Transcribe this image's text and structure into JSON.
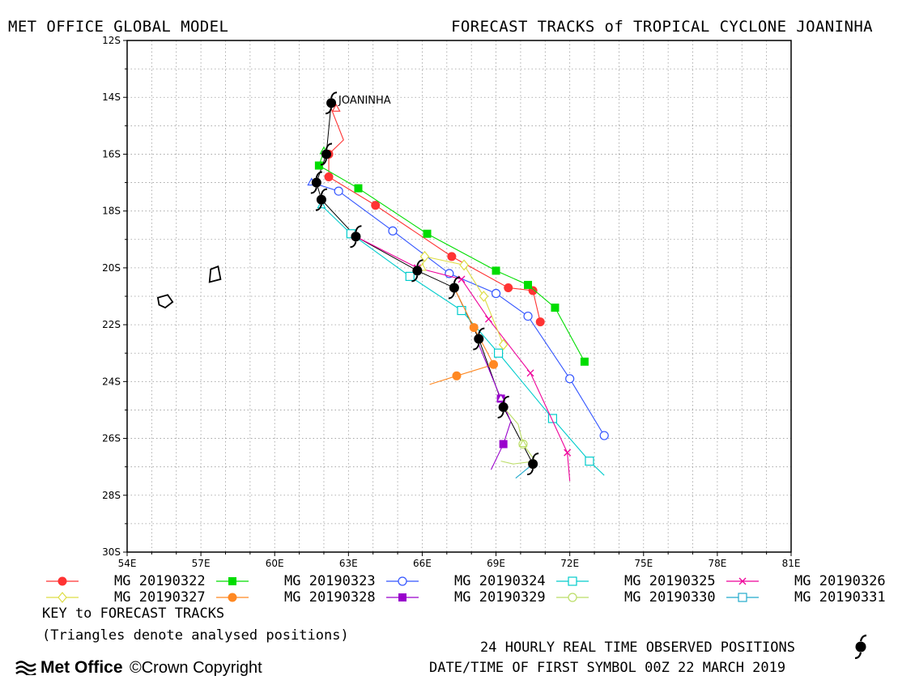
{
  "header": {
    "left": "MET OFFICE GLOBAL MODEL",
    "right": "FORECAST TRACKS of TROPICAL CYCLONE JOANINHA"
  },
  "chart_data": {
    "type": "map-tracks",
    "storm_label": "JOANINHA",
    "x_ticks": [
      "54E",
      "57E",
      "60E",
      "63E",
      "66E",
      "69E",
      "72E",
      "75E",
      "78E",
      "81E"
    ],
    "y_ticks": [
      "12S",
      "14S",
      "16S",
      "18S",
      "20S",
      "22S",
      "24S",
      "26S",
      "28S",
      "30S"
    ],
    "xlim": [
      54,
      81
    ],
    "ylim": [
      -30,
      -12
    ],
    "grid": true,
    "islands": [
      [
        [
          55.25,
          -21.05
        ],
        [
          55.65,
          -20.95
        ],
        [
          55.85,
          -21.2
        ],
        [
          55.55,
          -21.4
        ],
        [
          55.3,
          -21.3
        ]
      ],
      [
        [
          57.4,
          -20.05
        ],
        [
          57.7,
          -19.95
        ],
        [
          57.8,
          -20.4
        ],
        [
          57.35,
          -20.5
        ]
      ]
    ],
    "observed": {
      "lon": [
        62.3,
        62.1,
        61.7,
        61.9,
        63.3,
        65.8,
        67.3,
        68.3,
        69.3,
        70.5
      ],
      "lat": [
        -14.2,
        -16.0,
        -17.0,
        -17.6,
        -18.9,
        -20.1,
        -20.7,
        -22.5,
        -24.9,
        -26.9
      ]
    },
    "series": [
      {
        "name": "MG 20190322",
        "color": "#ff3333",
        "marker": "circle-filled",
        "analysed": {
          "lon": [
            62.5
          ],
          "lat": [
            -14.4
          ]
        },
        "track": {
          "lon": [
            62.3,
            62.8,
            62.2,
            62.2,
            64.1,
            67.2,
            69.5,
            70.5,
            70.8
          ],
          "lat": [
            -14.4,
            -15.5,
            -16.0,
            -16.8,
            -17.8,
            -19.6,
            -20.7,
            -20.8,
            -21.9
          ]
        },
        "markers": {
          "lon": [
            62.2,
            62.2,
            64.1,
            67.2,
            69.5,
            70.5,
            70.8
          ],
          "lat": [
            -16.0,
            -16.8,
            -17.8,
            -19.6,
            -20.7,
            -20.8,
            -21.9
          ]
        }
      },
      {
        "name": "MG 20190323",
        "color": "#00dd00",
        "marker": "square-filled",
        "analysed": {
          "lon": [
            62.0
          ],
          "lat": [
            -15.9
          ]
        },
        "track": {
          "lon": [
            62.0,
            61.8,
            63.4,
            66.2,
            69.0,
            70.3,
            71.4,
            72.6
          ],
          "lat": [
            -15.9,
            -16.4,
            -17.2,
            -18.8,
            -20.1,
            -20.6,
            -21.4,
            -23.3
          ]
        },
        "markers": {
          "lon": [
            61.8,
            63.4,
            66.2,
            69.0,
            70.3,
            71.4,
            72.6
          ],
          "lat": [
            -16.4,
            -17.2,
            -18.8,
            -20.1,
            -20.6,
            -21.4,
            -23.3
          ]
        }
      },
      {
        "name": "MG 20190324",
        "color": "#3355ff",
        "marker": "circle-open",
        "analysed": {
          "lon": [
            61.5
          ],
          "lat": [
            -17.0
          ]
        },
        "track": {
          "lon": [
            61.5,
            62.6,
            64.8,
            67.1,
            69.0,
            70.3,
            72.0,
            73.4
          ],
          "lat": [
            -17.0,
            -17.3,
            -18.7,
            -20.2,
            -20.9,
            -21.7,
            -23.9,
            -25.9
          ]
        },
        "markers": {
          "lon": [
            62.6,
            64.8,
            67.1,
            69.0,
            70.3,
            72.0,
            73.4
          ],
          "lat": [
            -17.3,
            -18.7,
            -20.2,
            -20.9,
            -21.7,
            -23.9,
            -25.9
          ]
        }
      },
      {
        "name": "MG 20190325",
        "color": "#00cccc",
        "marker": "square-open",
        "analysed": {
          "lon": [
            61.9
          ],
          "lat": [
            -17.8
          ]
        },
        "track": {
          "lon": [
            61.9,
            63.1,
            65.5,
            67.6,
            69.1,
            71.3,
            72.8,
            73.4
          ],
          "lat": [
            -17.8,
            -18.8,
            -20.3,
            -21.5,
            -23.0,
            -25.3,
            -26.8,
            -27.3
          ]
        },
        "markers": {
          "lon": [
            63.1,
            65.5,
            67.6,
            69.1,
            71.3,
            72.8
          ],
          "lat": [
            -18.8,
            -20.3,
            -21.5,
            -23.0,
            -25.3,
            -26.8
          ]
        }
      },
      {
        "name": "MG 20190326",
        "color": "#ee0099",
        "marker": "x",
        "analysed": {
          "lon": [
            63.3
          ],
          "lat": [
            -18.9
          ]
        },
        "track": {
          "lon": [
            63.3,
            65.8,
            67.6,
            68.7,
            70.4,
            71.9,
            72.0
          ],
          "lat": [
            -18.9,
            -20.0,
            -20.4,
            -21.8,
            -23.7,
            -26.5,
            -27.5
          ]
        },
        "markers": {
          "lon": [
            65.8,
            67.6,
            68.7,
            70.4,
            71.9
          ],
          "lat": [
            -20.0,
            -20.4,
            -21.8,
            -23.7,
            -26.5
          ]
        }
      },
      {
        "name": "MG 20190327",
        "color": "#dddd44",
        "marker": "diamond-open",
        "analysed": {
          "lon": [
            66.0
          ],
          "lat": [
            -20.0
          ]
        },
        "track": {
          "lon": [
            66.0,
            66.1,
            67.7,
            68.5,
            69.3
          ],
          "lat": [
            -20.0,
            -19.6,
            -19.9,
            -21.0,
            -22.7
          ]
        },
        "markers": {
          "lon": [
            66.1,
            67.7,
            68.5,
            69.3
          ],
          "lat": [
            -19.6,
            -19.9,
            -21.0,
            -22.7
          ]
        }
      },
      {
        "name": "MG 20190328",
        "color": "#ff8822",
        "marker": "circle-filled",
        "analysed": {
          "lon": [
            67.3
          ],
          "lat": [
            -20.7
          ]
        },
        "track": {
          "lon": [
            67.3,
            68.1,
            68.6,
            68.9,
            67.4,
            66.3
          ],
          "lat": [
            -20.7,
            -22.1,
            -22.9,
            -23.4,
            -23.8,
            -24.1
          ]
        },
        "markers": {
          "lon": [
            68.1,
            68.9,
            67.4
          ],
          "lat": [
            -22.1,
            -23.4,
            -23.8
          ]
        }
      },
      {
        "name": "MG 20190329",
        "color": "#9900cc",
        "marker": "square-filled",
        "analysed": {
          "lon": [
            69.2
          ],
          "lat": [
            -24.6
          ]
        },
        "track": {
          "lon": [
            68.3,
            69.2,
            69.6,
            69.3,
            68.8
          ],
          "lat": [
            -22.7,
            -24.6,
            -25.4,
            -26.2,
            -27.1
          ]
        },
        "markers": {
          "lon": [
            69.2,
            69.3
          ],
          "lat": [
            -24.6,
            -26.2
          ]
        }
      },
      {
        "name": "MG 20190330",
        "color": "#bbdd66",
        "marker": "circle-open",
        "analysed": {
          "lon": [
            70.1
          ],
          "lat": [
            -26.2
          ]
        },
        "track": {
          "lon": [
            69.3,
            69.9,
            70.1,
            70.6,
            69.7,
            69.2
          ],
          "lat": [
            -24.9,
            -25.5,
            -26.2,
            -26.8,
            -26.9,
            -26.8
          ]
        },
        "markers": {
          "lon": [
            70.1
          ],
          "lat": [
            -26.2
          ]
        }
      },
      {
        "name": "MG 20190331",
        "color": "#22aacc",
        "marker": "square-open",
        "analysed": {
          "lon": [
            70.5
          ],
          "lat": [
            -26.9
          ]
        },
        "track": {
          "lon": [
            70.5,
            69.8
          ],
          "lat": [
            -26.9,
            -27.4
          ]
        },
        "markers": {
          "lon": [],
          "lat": []
        }
      }
    ]
  },
  "notes": {
    "key": "KEY to FORECAST TRACKS",
    "triangles": "(Triangles denote analysed positions)"
  },
  "footer": {
    "observed": "24 HOURLY REAL TIME OBSERVED POSITIONS",
    "datetime": "DATE/TIME OF FIRST SYMBOL 00Z 22 MARCH 2019",
    "logo": "Met Office",
    "copyright": "©Crown Copyright"
  }
}
